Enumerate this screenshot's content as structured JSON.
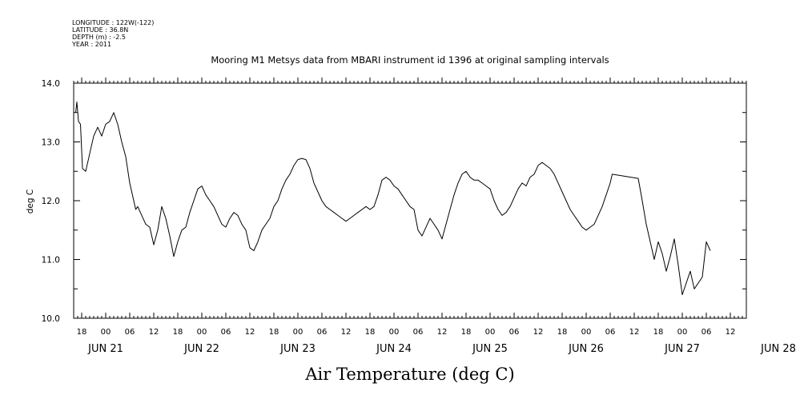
{
  "metadata": {
    "longitude": "LONGITUDE : 122W(-122)",
    "latitude": "LATITUDE : 36.8N",
    "depth": "DEPTH (m) : -2.5",
    "year": "YEAR : 2011"
  },
  "chart_data": {
    "type": "line",
    "title": "Mooring M1 Metsys data from MBARI instrument id 1396 at original sampling intervals",
    "xlabel": "Air Temperature (deg C)",
    "ylabel": "deg C",
    "ylim": [
      10.0,
      14.0
    ],
    "y_ticks": [
      "10.0",
      "11.0",
      "12.0",
      "13.0",
      "14.0"
    ],
    "xlim_hours": [
      -8,
      160
    ],
    "x_hour_ticks": [
      "18",
      "00",
      "06",
      "12",
      "18",
      "00",
      "06",
      "12",
      "18",
      "00",
      "06",
      "12",
      "18",
      "00",
      "06",
      "12",
      "18",
      "00",
      "06",
      "12",
      "18",
      "00",
      "06",
      "12",
      "18",
      "00",
      "06",
      "12"
    ],
    "x_day_labels": [
      "JUN 21",
      "JUN 22",
      "JUN 23",
      "JUN 24",
      "JUN 25",
      "JUN 26",
      "JUN 27",
      "JUN 28"
    ],
    "grid": false,
    "series": [
      {
        "color": "#000000",
        "points": [
          [
            -7.5,
            13.5
          ],
          [
            -7.2,
            13.68
          ],
          [
            -6.8,
            13.35
          ],
          [
            -6.3,
            13.3
          ],
          [
            -5.8,
            12.55
          ],
          [
            -5.0,
            12.5
          ],
          [
            -4.0,
            12.8
          ],
          [
            -3.0,
            13.1
          ],
          [
            -2.0,
            13.25
          ],
          [
            -1.0,
            13.1
          ],
          [
            0.0,
            13.3
          ],
          [
            1.0,
            13.35
          ],
          [
            2.0,
            13.5
          ],
          [
            3.0,
            13.3
          ],
          [
            4.0,
            13.0
          ],
          [
            5.0,
            12.75
          ],
          [
            6.0,
            12.3
          ],
          [
            7.0,
            12.0
          ],
          [
            7.5,
            11.85
          ],
          [
            8.0,
            11.9
          ],
          [
            9.0,
            11.75
          ],
          [
            10.0,
            11.6
          ],
          [
            11.0,
            11.55
          ],
          [
            12.0,
            11.25
          ],
          [
            13.0,
            11.5
          ],
          [
            14.0,
            11.9
          ],
          [
            15.0,
            11.7
          ],
          [
            16.0,
            11.4
          ],
          [
            17.0,
            11.05
          ],
          [
            18.0,
            11.3
          ],
          [
            19.0,
            11.5
          ],
          [
            20.0,
            11.55
          ],
          [
            21.0,
            11.8
          ],
          [
            22.0,
            12.0
          ],
          [
            23.0,
            12.2
          ],
          [
            24.0,
            12.25
          ],
          [
            25.0,
            12.1
          ],
          [
            26.0,
            12.0
          ],
          [
            27.0,
            11.9
          ],
          [
            28.0,
            11.75
          ],
          [
            29.0,
            11.6
          ],
          [
            30.0,
            11.55
          ],
          [
            31.0,
            11.7
          ],
          [
            32.0,
            11.8
          ],
          [
            33.0,
            11.75
          ],
          [
            34.0,
            11.6
          ],
          [
            35.0,
            11.5
          ],
          [
            36.0,
            11.2
          ],
          [
            37.0,
            11.15
          ],
          [
            38.0,
            11.3
          ],
          [
            39.0,
            11.5
          ],
          [
            40.0,
            11.6
          ],
          [
            41.0,
            11.7
          ],
          [
            42.0,
            11.9
          ],
          [
            43.0,
            12.0
          ],
          [
            44.0,
            12.2
          ],
          [
            45.0,
            12.35
          ],
          [
            46.0,
            12.45
          ],
          [
            47.0,
            12.6
          ],
          [
            48.0,
            12.7
          ],
          [
            49.0,
            12.72
          ],
          [
            50.0,
            12.7
          ],
          [
            51.0,
            12.55
          ],
          [
            52.0,
            12.3
          ],
          [
            53.0,
            12.15
          ],
          [
            54.0,
            12.0
          ],
          [
            55.0,
            11.9
          ],
          [
            56.0,
            11.85
          ],
          [
            57.0,
            11.8
          ],
          [
            58.0,
            11.75
          ],
          [
            59.0,
            11.7
          ],
          [
            60.0,
            11.65
          ],
          [
            61.0,
            11.7
          ],
          [
            62.0,
            11.75
          ],
          [
            63.0,
            11.8
          ],
          [
            64.0,
            11.85
          ],
          [
            65.0,
            11.9
          ],
          [
            66.0,
            11.85
          ],
          [
            67.0,
            11.9
          ],
          [
            68.0,
            12.1
          ],
          [
            69.0,
            12.35
          ],
          [
            70.0,
            12.4
          ],
          [
            71.0,
            12.35
          ],
          [
            72.0,
            12.25
          ],
          [
            73.0,
            12.2
          ],
          [
            74.0,
            12.1
          ],
          [
            75.0,
            12.0
          ],
          [
            76.0,
            11.9
          ],
          [
            77.0,
            11.85
          ],
          [
            78.0,
            11.5
          ],
          [
            79.0,
            11.4
          ],
          [
            80.0,
            11.55
          ],
          [
            81.0,
            11.7
          ],
          [
            82.0,
            11.6
          ],
          [
            83.0,
            11.5
          ],
          [
            84.0,
            11.35
          ],
          [
            85.0,
            11.6
          ],
          [
            86.0,
            11.85
          ],
          [
            87.0,
            12.1
          ],
          [
            88.0,
            12.3
          ],
          [
            89.0,
            12.45
          ],
          [
            90.0,
            12.5
          ],
          [
            91.0,
            12.4
          ],
          [
            92.0,
            12.35
          ],
          [
            93.0,
            12.35
          ],
          [
            94.0,
            12.3
          ],
          [
            95.0,
            12.25
          ],
          [
            96.0,
            12.2
          ],
          [
            97.0,
            12.0
          ],
          [
            98.0,
            11.85
          ],
          [
            99.0,
            11.75
          ],
          [
            100.0,
            11.8
          ],
          [
            101.0,
            11.9
          ],
          [
            102.0,
            12.05
          ],
          [
            103.0,
            12.2
          ],
          [
            104.0,
            12.3
          ],
          [
            105.0,
            12.25
          ],
          [
            106.0,
            12.4
          ],
          [
            107.0,
            12.45
          ],
          [
            108.0,
            12.6
          ],
          [
            109.0,
            12.65
          ],
          [
            110.0,
            12.6
          ],
          [
            111.0,
            12.55
          ],
          [
            112.0,
            12.45
          ],
          [
            113.0,
            12.3
          ],
          [
            114.0,
            12.15
          ],
          [
            115.0,
            12.0
          ],
          [
            116.0,
            11.85
          ],
          [
            117.0,
            11.75
          ],
          [
            118.0,
            11.65
          ],
          [
            119.0,
            11.55
          ],
          [
            120.0,
            11.5
          ],
          [
            121.0,
            11.55
          ],
          [
            122.0,
            11.6
          ],
          [
            123.0,
            11.75
          ],
          [
            124.0,
            11.9
          ],
          [
            125.0,
            12.1
          ],
          [
            126.0,
            12.3
          ],
          [
            126.5,
            12.45
          ],
          [
            133.0,
            12.38
          ],
          [
            134.0,
            12.0
          ],
          [
            135.0,
            11.6
          ],
          [
            136.0,
            11.3
          ],
          [
            137.0,
            11.0
          ],
          [
            138.0,
            11.3
          ],
          [
            139.0,
            11.1
          ],
          [
            140.0,
            10.8
          ],
          [
            141.0,
            11.05
          ],
          [
            142.0,
            11.35
          ],
          [
            143.0,
            10.9
          ],
          [
            144.0,
            10.4
          ],
          [
            145.0,
            10.6
          ],
          [
            146.0,
            10.8
          ],
          [
            147.0,
            10.5
          ],
          [
            148.0,
            10.6
          ],
          [
            149.0,
            10.7
          ],
          [
            150.0,
            11.3
          ],
          [
            151.0,
            11.15
          ]
        ]
      }
    ]
  }
}
